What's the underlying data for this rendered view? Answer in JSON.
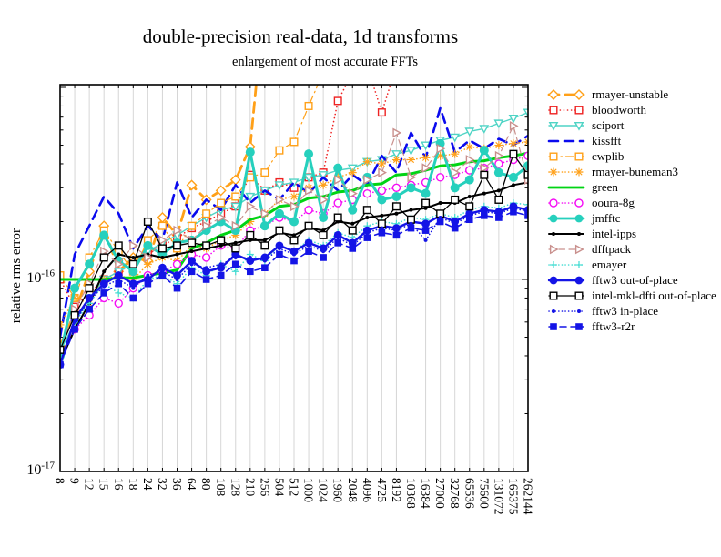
{
  "chart_data": {
    "type": "line",
    "title": "double-precision real-data, 1d transforms",
    "subtitle": "enlargement of most accurate FFTs",
    "ylabel": "relative rms error",
    "y_axis": {
      "scale": "log",
      "ticks": [
        {
          "base": "10",
          "exp": "-16"
        },
        {
          "base": "10",
          "exp": "-17"
        }
      ],
      "range": [
        "1e-17",
        "1.05e-15"
      ],
      "grid_at": [
        "1e-16"
      ],
      "values_unit": "1e-16"
    },
    "x_categories": [
      8,
      9,
      12,
      15,
      16,
      18,
      24,
      32,
      36,
      64,
      80,
      108,
      128,
      210,
      256,
      504,
      512,
      1000,
      1024,
      1960,
      2048,
      4096,
      4725,
      8192,
      10368,
      16384,
      27000,
      32768,
      65536,
      75600,
      131072,
      165375,
      262144
    ],
    "grid_color": "#d6d6d6",
    "series": [
      {
        "name": "rmayer-unstable",
        "color": "#ffa018",
        "width": 2.8,
        "dash": "11,7",
        "marker": "diamond",
        "values": [
          0.45,
          0.67,
          1.1,
          1.9,
          1.1,
          1.3,
          1.25,
          2.1,
          1.7,
          3.1,
          2.6,
          2.9,
          3.3,
          4.9,
          30,
          null,
          null,
          null,
          null,
          null,
          null,
          null,
          null,
          null,
          null,
          null,
          null,
          null,
          null,
          null,
          null,
          null,
          null
        ]
      },
      {
        "name": "bloodworth",
        "color": "#ee2222",
        "width": 1.6,
        "dash": "0.1,4",
        "marker": "square",
        "values": [
          1.0,
          0.72,
          0.85,
          1.0,
          1.1,
          1.2,
          1.35,
          1.5,
          1.65,
          1.85,
          2.0,
          2.2,
          2.4,
          3.5,
          2.9,
          3.2,
          3.0,
          3.4,
          3.6,
          8.5,
          12,
          13,
          7.4,
          13,
          14,
          13,
          14,
          15,
          14,
          15,
          14,
          15,
          14
        ]
      },
      {
        "name": "sciport",
        "color": "#4fd4c5",
        "width": 1.4,
        "dash": "",
        "marker": "tri-down",
        "values": [
          0.42,
          0.6,
          0.8,
          1.0,
          1.1,
          1.2,
          1.4,
          1.55,
          1.7,
          1.9,
          2.1,
          2.3,
          2.4,
          2.7,
          2.9,
          3.1,
          3.2,
          3.4,
          3.5,
          3.7,
          3.8,
          4.1,
          4.2,
          4.5,
          4.7,
          5.0,
          5.3,
          5.5,
          5.9,
          6.1,
          6.5,
          6.9,
          7.4
        ]
      },
      {
        "name": "kissfft",
        "color": "#0a0aee",
        "width": 2.6,
        "dash": "10,7",
        "marker": "none",
        "values": [
          0.5,
          1.35,
          1.9,
          2.7,
          2.2,
          1.45,
          1.9,
          1.6,
          3.2,
          2.1,
          2.6,
          2.3,
          3.1,
          2.5,
          2.9,
          2.6,
          3.2,
          2.8,
          3.4,
          2.9,
          3.5,
          3.1,
          4.4,
          3.6,
          5.8,
          4.3,
          7.8,
          4.6,
          5.3,
          4.8,
          5.4,
          5.0,
          5.6
        ]
      },
      {
        "name": "cwplib",
        "color": "#ffa018",
        "width": 1.2,
        "dash": "9,4,1.5,4",
        "marker": "square",
        "values": [
          1.05,
          0.8,
          1.3,
          1.8,
          1.4,
          1.1,
          1.6,
          1.9,
          1.45,
          1.9,
          2.2,
          2.5,
          2.7,
          3.4,
          3.6,
          4.7,
          5.2,
          8.0,
          12,
          null,
          null,
          null,
          null,
          null,
          null,
          null,
          null,
          null,
          null,
          null,
          null,
          null,
          null
        ]
      },
      {
        "name": "rmayer-buneman3",
        "color": "#ffa018",
        "width": 1.6,
        "dash": "0.1,3.5",
        "marker": "asterisk",
        "values": [
          0.58,
          0.8,
          0.75,
          1.0,
          1.05,
          1.0,
          1.2,
          1.3,
          1.25,
          1.5,
          1.45,
          1.6,
          1.7,
          2.0,
          2.2,
          2.6,
          2.7,
          3.0,
          3.1,
          3.4,
          3.6,
          4.1,
          4.0,
          4.2,
          4.2,
          4.3,
          4.4,
          4.5,
          4.9,
          4.8,
          5.0,
          5.1,
          5.2
        ]
      },
      {
        "name": "green",
        "color": "#00d414",
        "width": 3,
        "dash": "",
        "marker": "none",
        "values": [
          1.0,
          1.0,
          1.0,
          1.0,
          1.02,
          1.02,
          1.05,
          1.08,
          1.12,
          1.45,
          1.55,
          1.7,
          1.8,
          2.05,
          2.15,
          2.4,
          2.45,
          2.65,
          2.7,
          2.85,
          2.9,
          3.1,
          3.15,
          3.5,
          3.55,
          3.7,
          3.9,
          3.95,
          4.1,
          4.15,
          4.3,
          4.4,
          4.55
        ]
      },
      {
        "name": "ooura-8g",
        "color": "#f50cf5",
        "width": 1.6,
        "dash": "0.1,3.5",
        "marker": "circle",
        "values": [
          0.4,
          0.55,
          0.65,
          0.8,
          0.75,
          0.9,
          1.05,
          1.1,
          1.2,
          1.35,
          1.3,
          1.5,
          1.45,
          1.8,
          1.9,
          2.1,
          2.0,
          2.3,
          2.2,
          2.5,
          2.6,
          2.8,
          2.9,
          3.0,
          3.1,
          3.2,
          3.4,
          3.5,
          3.7,
          3.8,
          4.0,
          4.2,
          4.4
        ]
      },
      {
        "name": "jmfftc",
        "color": "#26d0bd",
        "width": 3,
        "dash": "",
        "marker": "circle-filled",
        "values": [
          0.4,
          0.9,
          1.2,
          1.7,
          1.25,
          1.1,
          1.5,
          1.35,
          1.55,
          1.6,
          1.8,
          2.0,
          1.8,
          4.6,
          1.9,
          2.2,
          2.0,
          4.5,
          2.1,
          3.8,
          2.3,
          3.4,
          2.6,
          2.7,
          3.0,
          2.8,
          5.1,
          3.0,
          3.3,
          4.7,
          3.6,
          3.4,
          3.9
        ]
      },
      {
        "name": "intel-ipps",
        "color": "#000000",
        "width": 2,
        "dash": "",
        "marker": "dot",
        "values": [
          0.37,
          0.55,
          0.75,
          1.1,
          1.35,
          1.3,
          1.35,
          1.3,
          1.35,
          1.4,
          1.45,
          1.5,
          1.55,
          1.6,
          1.6,
          1.75,
          1.7,
          1.85,
          1.8,
          2.0,
          1.95,
          2.1,
          2.15,
          2.2,
          2.3,
          2.35,
          2.5,
          2.5,
          2.7,
          2.8,
          2.9,
          3.1,
          3.2
        ]
      },
      {
        "name": "dfftpack",
        "color": "#c9908d",
        "width": 1.2,
        "dash": "6.5,4.5",
        "marker": "tri-right",
        "values": [
          0.42,
          0.7,
          0.95,
          1.4,
          1.2,
          1.5,
          1.3,
          1.6,
          1.8,
          1.6,
          1.9,
          2.1,
          1.9,
          2.4,
          2.2,
          2.6,
          2.4,
          2.9,
          2.6,
          3.3,
          2.8,
          3.3,
          3.6,
          5.8,
          3.4,
          3.8,
          4.8,
          3.6,
          4.2,
          3.8,
          4.4,
          6.3,
          3.3
        ]
      },
      {
        "name": "emayer",
        "color": "#42dcd2",
        "width": 1.6,
        "dash": "0.1,3.5",
        "marker": "plus",
        "values": [
          0.38,
          0.6,
          0.75,
          0.95,
          0.85,
          0.8,
          1.0,
          1.05,
          0.95,
          1.15,
          1.05,
          1.2,
          1.1,
          1.35,
          1.25,
          1.5,
          1.4,
          1.6,
          1.5,
          1.75,
          1.65,
          1.9,
          2.0,
          1.95,
          2.1,
          2.05,
          2.2,
          2.1,
          2.3,
          2.4,
          2.35,
          2.5,
          2.45
        ]
      },
      {
        "name": "fftw3 out-of-place",
        "color": "#1414e6",
        "width": 2.4,
        "dash": "",
        "marker": "circle-filled",
        "values": [
          0.36,
          0.62,
          0.8,
          0.95,
          1.05,
          0.95,
          1.0,
          1.15,
          1.05,
          1.25,
          1.1,
          1.15,
          1.35,
          1.25,
          1.3,
          1.5,
          1.4,
          1.55,
          1.45,
          1.7,
          1.55,
          1.8,
          1.9,
          1.85,
          2.0,
          1.95,
          2.15,
          2.0,
          2.2,
          2.3,
          2.25,
          2.4,
          2.3
        ]
      },
      {
        "name": "intel-mkl-dfti out-of-place",
        "color": "#000000",
        "width": 1.3,
        "dash": "",
        "marker": "square",
        "values": [
          0.43,
          0.65,
          0.9,
          1.3,
          1.5,
          1.2,
          2.0,
          1.45,
          1.5,
          1.55,
          1.5,
          1.6,
          1.45,
          1.7,
          1.5,
          1.8,
          1.6,
          1.9,
          1.7,
          2.1,
          1.8,
          2.3,
          1.95,
          2.4,
          2.05,
          2.5,
          2.2,
          2.6,
          2.4,
          3.5,
          2.6,
          4.5,
          3.5
        ]
      },
      {
        "name": "fftw3 in-place",
        "color": "#1414e6",
        "width": 1.6,
        "dash": "0.1,3.5",
        "marker": "dot",
        "values": [
          0.36,
          0.6,
          0.78,
          0.92,
          1.0,
          0.9,
          1.05,
          1.1,
          1.0,
          1.2,
          1.15,
          1.2,
          1.3,
          1.3,
          1.25,
          1.45,
          1.35,
          1.5,
          1.4,
          1.65,
          1.5,
          1.75,
          1.85,
          1.8,
          1.95,
          1.6,
          2.1,
          1.95,
          2.15,
          2.25,
          2.2,
          2.35,
          2.25
        ]
      },
      {
        "name": "fftw3-r2r",
        "color": "#1414e6",
        "width": 1.6,
        "dash": "7,5",
        "marker": "square-filled",
        "values": [
          0.36,
          0.55,
          0.7,
          0.85,
          0.95,
          0.8,
          0.95,
          1.05,
          0.9,
          1.1,
          1.0,
          1.05,
          1.2,
          1.1,
          1.15,
          1.35,
          1.25,
          1.4,
          1.3,
          1.55,
          1.45,
          1.65,
          1.75,
          1.7,
          1.85,
          1.8,
          2.0,
          1.85,
          2.05,
          2.15,
          2.1,
          2.25,
          2.15
        ]
      }
    ]
  }
}
